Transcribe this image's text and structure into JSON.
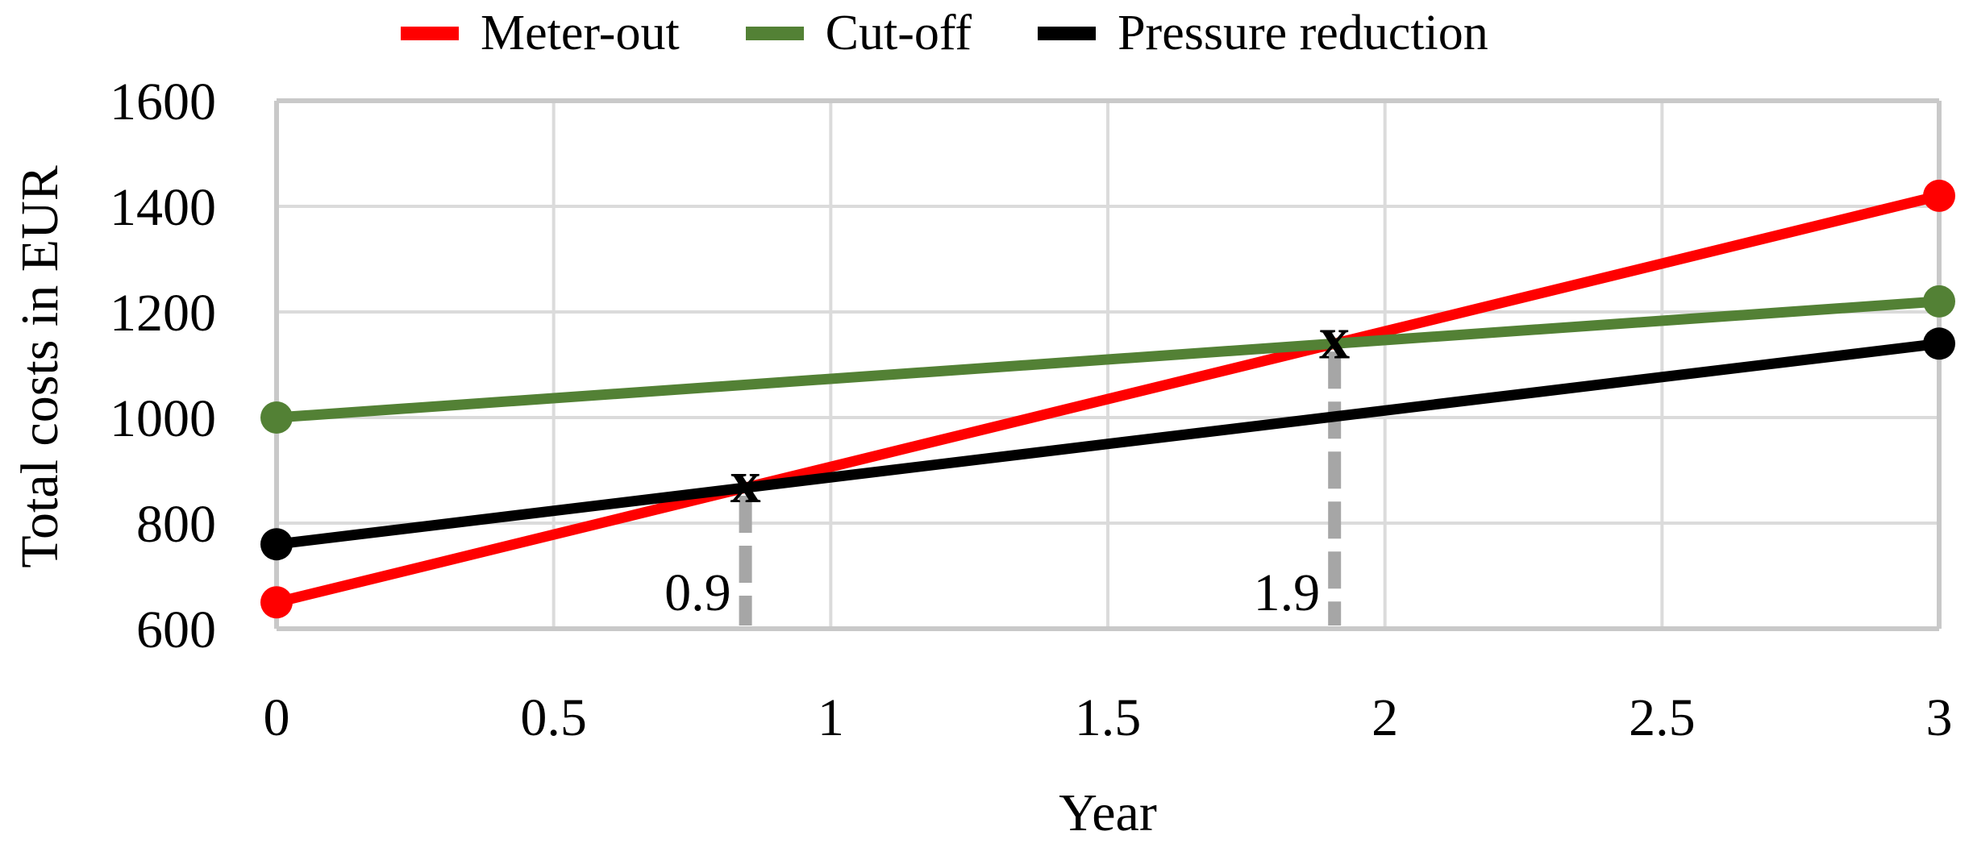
{
  "chart_data": {
    "type": "line",
    "title": "",
    "xlabel": "Year",
    "ylabel": "Total costs in EUR",
    "xlim": [
      0,
      3
    ],
    "ylim": [
      600,
      1600
    ],
    "grid": true,
    "legend_position": "top",
    "x": [
      0,
      3
    ],
    "x_ticks": [
      {
        "v": 0,
        "label": "0"
      },
      {
        "v": 0.5,
        "label": "0.5"
      },
      {
        "v": 1,
        "label": "1"
      },
      {
        "v": 1.5,
        "label": "1.5"
      },
      {
        "v": 2,
        "label": "2"
      },
      {
        "v": 2.5,
        "label": "2.5"
      },
      {
        "v": 3,
        "label": "3"
      }
    ],
    "y_ticks": [
      {
        "v": 600,
        "label": "600"
      },
      {
        "v": 800,
        "label": "800"
      },
      {
        "v": 1000,
        "label": "1000"
      },
      {
        "v": 1200,
        "label": "1200"
      },
      {
        "v": 1400,
        "label": "1400"
      },
      {
        "v": 1600,
        "label": "1600"
      }
    ],
    "series": [
      {
        "name": "Meter-out",
        "color": "#FF0000",
        "values": [
          650,
          1420
        ]
      },
      {
        "name": "Cut-off",
        "color": "#538135",
        "values": [
          1000,
          1220
        ]
      },
      {
        "name": "Pressure reduction",
        "color": "#000000",
        "values": [
          760,
          1140
        ]
      }
    ],
    "crossings": [
      {
        "label": "0.9",
        "marker": "x",
        "between": [
          "Meter-out",
          "Pressure reduction"
        ]
      },
      {
        "label": "1.9",
        "marker": "x",
        "between": [
          "Meter-out",
          "Cut-off"
        ]
      }
    ],
    "colors": {
      "grid": "#DBDBDB",
      "axis_border": "#C9C9C9",
      "crossing_line": "#A6A6A6",
      "text": "#000000",
      "background": "#FFFFFF"
    }
  }
}
